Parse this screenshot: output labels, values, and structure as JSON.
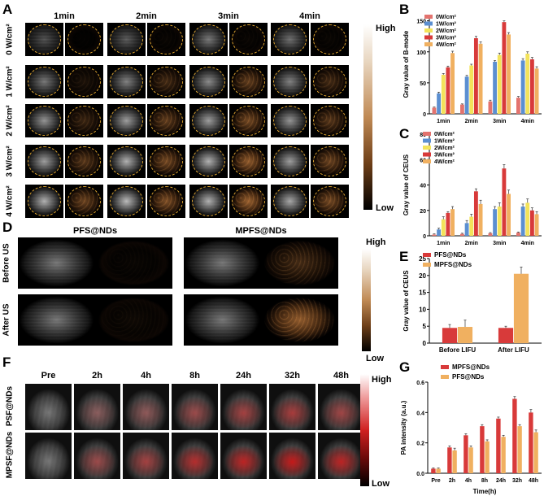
{
  "panel_labels": {
    "A": "A",
    "B": "B",
    "C": "C",
    "D": "D",
    "E": "E",
    "F": "F",
    "G": "G"
  },
  "panel_a": {
    "columns": [
      "1min",
      "2min",
      "3min",
      "4min"
    ],
    "rows": [
      "0 W/cm²",
      "1 W/cm²",
      "2 W/cm²",
      "3 W/cm²",
      "4 W/cm²"
    ],
    "colorbar_high": "High",
    "colorbar_low": "Low",
    "ring_color": "#e0a630",
    "bmode_brightness": [
      [
        0.35,
        0.4,
        0.55,
        0.5
      ],
      [
        0.55,
        0.6,
        0.65,
        0.6
      ],
      [
        0.7,
        0.75,
        0.75,
        0.7
      ],
      [
        0.75,
        0.85,
        0.85,
        0.75
      ],
      [
        0.85,
        0.9,
        0.85,
        0.8
      ]
    ],
    "ceus_intensity": [
      [
        0.02,
        0.05,
        0.05,
        0.05
      ],
      [
        0.15,
        0.35,
        0.5,
        0.35
      ],
      [
        0.3,
        0.5,
        0.6,
        0.45
      ],
      [
        0.45,
        0.6,
        0.75,
        0.55
      ],
      [
        0.55,
        0.65,
        0.8,
        0.6
      ]
    ]
  },
  "panel_d": {
    "titles": [
      "PFS@NDs",
      "MPFS@NDs"
    ],
    "rows": [
      "Before US",
      "After US"
    ],
    "colorbar_high": "High",
    "colorbar_low": "Low",
    "ceus_intensity": [
      [
        0.05,
        0.35
      ],
      [
        0.08,
        0.75
      ]
    ]
  },
  "panel_f": {
    "columns": [
      "Pre",
      "2h",
      "4h",
      "8h",
      "24h",
      "32h",
      "48h"
    ],
    "rows": [
      "PSF@NDs",
      "MPSF@NDs"
    ],
    "colorbar_high": "High",
    "colorbar_low": "Low",
    "pa_intensity": [
      [
        0.0,
        0.25,
        0.3,
        0.45,
        0.55,
        0.6,
        0.5
      ],
      [
        0.0,
        0.45,
        0.55,
        0.75,
        0.85,
        0.95,
        0.85
      ]
    ]
  },
  "chart_data": [
    {
      "id": "B",
      "type": "bar",
      "ylabel": "Gray value of B-mode",
      "categories": [
        "1min",
        "2min",
        "3min",
        "4min"
      ],
      "ylim": [
        0,
        160
      ],
      "yticks": [
        0,
        50,
        100,
        150
      ],
      "series": [
        {
          "name": "0W/cm²",
          "color": "#e3736e",
          "values": [
            10,
            15,
            20,
            26
          ],
          "err": [
            1,
            1,
            2,
            2
          ]
        },
        {
          "name": "1W/cm²",
          "color": "#5b8fd1",
          "values": [
            33,
            60,
            84,
            86
          ],
          "err": [
            2,
            2,
            2,
            3
          ]
        },
        {
          "name": "2W/cm²",
          "color": "#f3e35b",
          "values": [
            63,
            78,
            95,
            97
          ],
          "err": [
            2,
            2,
            3,
            3
          ]
        },
        {
          "name": "3W/cm²",
          "color": "#d83a3a",
          "values": [
            75,
            122,
            148,
            88
          ],
          "err": [
            2,
            3,
            2,
            3
          ]
        },
        {
          "name": "4W/cm²",
          "color": "#f0b060",
          "values": [
            98,
            113,
            128,
            73
          ],
          "err": [
            3,
            3,
            3,
            3
          ]
        }
      ]
    },
    {
      "id": "C",
      "type": "bar",
      "ylabel": "Gray value of CEUS",
      "categories": [
        "1min",
        "2min",
        "3min",
        "4min"
      ],
      "ylim": [
        0,
        80
      ],
      "yticks": [
        0,
        20,
        40,
        60,
        80
      ],
      "series": [
        {
          "name": "0W/cm²",
          "color": "#e3736e",
          "values": [
            1,
            1.5,
            2,
            2.5
          ],
          "err": [
            0.5,
            0.5,
            0.5,
            0.5
          ]
        },
        {
          "name": "1W/cm²",
          "color": "#5b8fd1",
          "values": [
            5,
            10,
            21,
            23
          ],
          "err": [
            1,
            2,
            2,
            2
          ]
        },
        {
          "name": "2W/cm²",
          "color": "#f3e35b",
          "values": [
            13,
            15,
            23,
            26
          ],
          "err": [
            2,
            2,
            3,
            3
          ]
        },
        {
          "name": "3W/cm²",
          "color": "#d83a3a",
          "values": [
            18,
            35,
            53,
            20
          ],
          "err": [
            1,
            2,
            3,
            2
          ]
        },
        {
          "name": "4W/cm²",
          "color": "#f0b060",
          "values": [
            21,
            25,
            33,
            17
          ],
          "err": [
            2,
            3,
            3,
            2
          ]
        }
      ]
    },
    {
      "id": "E",
      "type": "bar",
      "ylabel": "Gray value of CEUS",
      "categories": [
        "Before LIFU",
        "After LIFU"
      ],
      "ylim": [
        0,
        25
      ],
      "yticks": [
        0,
        5,
        10,
        15,
        20,
        25
      ],
      "series": [
        {
          "name": "PFS@NDs",
          "color": "#d83a3a",
          "values": [
            4.5,
            4.5
          ],
          "err": [
            1.0,
            0.5
          ]
        },
        {
          "name": "MPFS@NDs",
          "color": "#f0b060",
          "values": [
            4.8,
            20.5
          ],
          "err": [
            2.0,
            2.0
          ]
        }
      ]
    },
    {
      "id": "G",
      "type": "bar",
      "xlabel": "Time(h)",
      "ylabel": "PA intensity  (a.u.)",
      "categories": [
        "Pre",
        "2h",
        "4h",
        "8h",
        "24h",
        "32h",
        "48h"
      ],
      "ylim": [
        0,
        0.6
      ],
      "yticks": [
        0.0,
        0.2,
        0.4,
        0.6
      ],
      "series": [
        {
          "name": "MPFS@NDs",
          "color": "#d83a3a",
          "values": [
            0.03,
            0.17,
            0.25,
            0.31,
            0.36,
            0.49,
            0.4
          ],
          "err": [
            0.005,
            0.01,
            0.01,
            0.01,
            0.01,
            0.015,
            0.02
          ]
        },
        {
          "name": "PFS@NDs",
          "color": "#f0b060",
          "values": [
            0.03,
            0.15,
            0.17,
            0.21,
            0.24,
            0.31,
            0.27
          ],
          "err": [
            0.005,
            0.015,
            0.01,
            0.01,
            0.01,
            0.01,
            0.015
          ]
        }
      ]
    }
  ]
}
